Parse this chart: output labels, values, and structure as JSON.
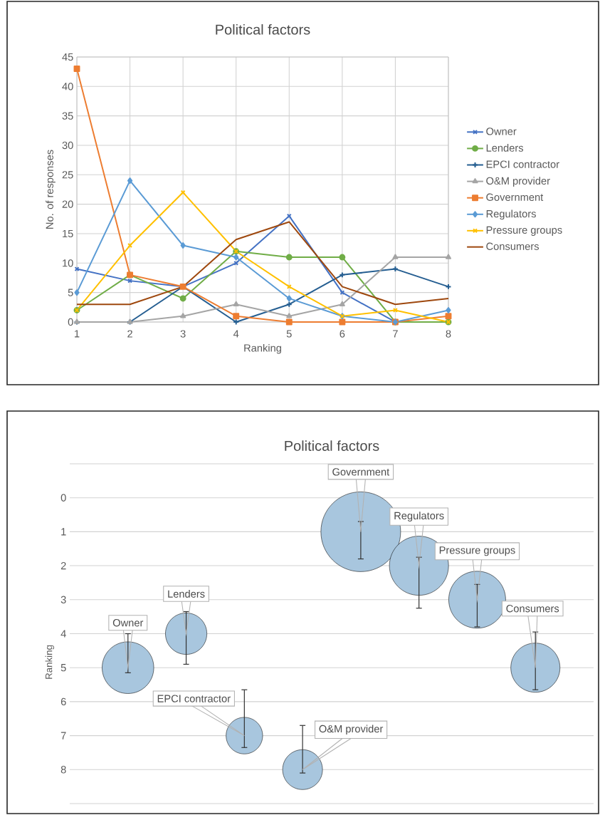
{
  "chart_data": [
    {
      "type": "line",
      "title": "Political factors",
      "xlabel": "Ranking",
      "ylabel": "No. of responses",
      "x": [
        1,
        2,
        3,
        4,
        5,
        6,
        7,
        8
      ],
      "xlim": [
        1,
        8
      ],
      "xticks": [
        1,
        2,
        3,
        4,
        5,
        6,
        7,
        8
      ],
      "ylim": [
        0,
        45
      ],
      "yticks": [
        0,
        5,
        10,
        15,
        20,
        25,
        30,
        35,
        40,
        45
      ],
      "grid": true,
      "legend": "right",
      "series": [
        {
          "name": "Owner",
          "color": "#4472c4",
          "marker": "cross",
          "values": [
            9,
            7,
            6,
            10,
            18,
            5,
            0,
            0
          ]
        },
        {
          "name": "Lenders",
          "color": "#70ad47",
          "marker": "circle",
          "values": [
            2,
            8,
            4,
            12,
            11,
            11,
            0,
            0
          ]
        },
        {
          "name": "EPCI contractor",
          "color": "#255e91",
          "marker": "plus",
          "values": [
            0,
            0,
            6,
            0,
            3,
            8,
            9,
            6
          ]
        },
        {
          "name": "O&M provider",
          "color": "#a5a5a5",
          "marker": "triangle",
          "values": [
            0,
            0,
            1,
            3,
            1,
            3,
            11,
            11
          ]
        },
        {
          "name": "Government",
          "color": "#ed7d31",
          "marker": "square",
          "values": [
            43,
            8,
            6,
            1,
            0,
            0,
            0,
            1
          ]
        },
        {
          "name": "Regulators",
          "color": "#5b9bd5",
          "marker": "diamond",
          "values": [
            5,
            24,
            13,
            11,
            4,
            1,
            0,
            2
          ]
        },
        {
          "name": "Pressure groups",
          "color": "#ffc000",
          "marker": "cross",
          "values": [
            2,
            13,
            22,
            12,
            6,
            1,
            2,
            0
          ]
        },
        {
          "name": "Consumers",
          "color": "#9e480e",
          "marker": "none",
          "values": [
            3,
            3,
            6,
            14,
            17,
            6,
            3,
            4
          ]
        }
      ]
    },
    {
      "type": "bubble",
      "title": "Political factors",
      "ylabel": "Ranking",
      "categories": [
        null,
        null,
        null,
        null,
        null,
        null,
        null,
        null
      ],
      "ylim": [
        9,
        -1
      ],
      "yticks": [
        {
          "value": -1,
          "label": null
        },
        0,
        1,
        2,
        3,
        4,
        5,
        6,
        7,
        8,
        {
          "value": 9,
          "label": null
        }
      ],
      "grid": "y",
      "tick_labels": "y",
      "color": "#a8c6de",
      "values": [
        5,
        4,
        7,
        8,
        1,
        2,
        3,
        5
      ],
      "sizes": [
        0.42,
        0.27,
        0.21,
        0.25,
        1,
        0.55,
        0.51,
        0.38
      ],
      "errors": [
        [
          4.0,
          5.15
        ],
        [
          3.35,
          4.9
        ],
        [
          5.65,
          7.35
        ],
        [
          6.7,
          8.1
        ],
        [
          0.7,
          1.8
        ],
        [
          1.75,
          3.25
        ],
        [
          2.55,
          3.8
        ],
        [
          3.95,
          5.65
        ]
      ],
      "annotations": [
        "Owner",
        "Lenders",
        "EPCI contractor",
        "O&M provider",
        "Government",
        "Regulators",
        "Pressure groups",
        "Consumers"
      ]
    }
  ]
}
